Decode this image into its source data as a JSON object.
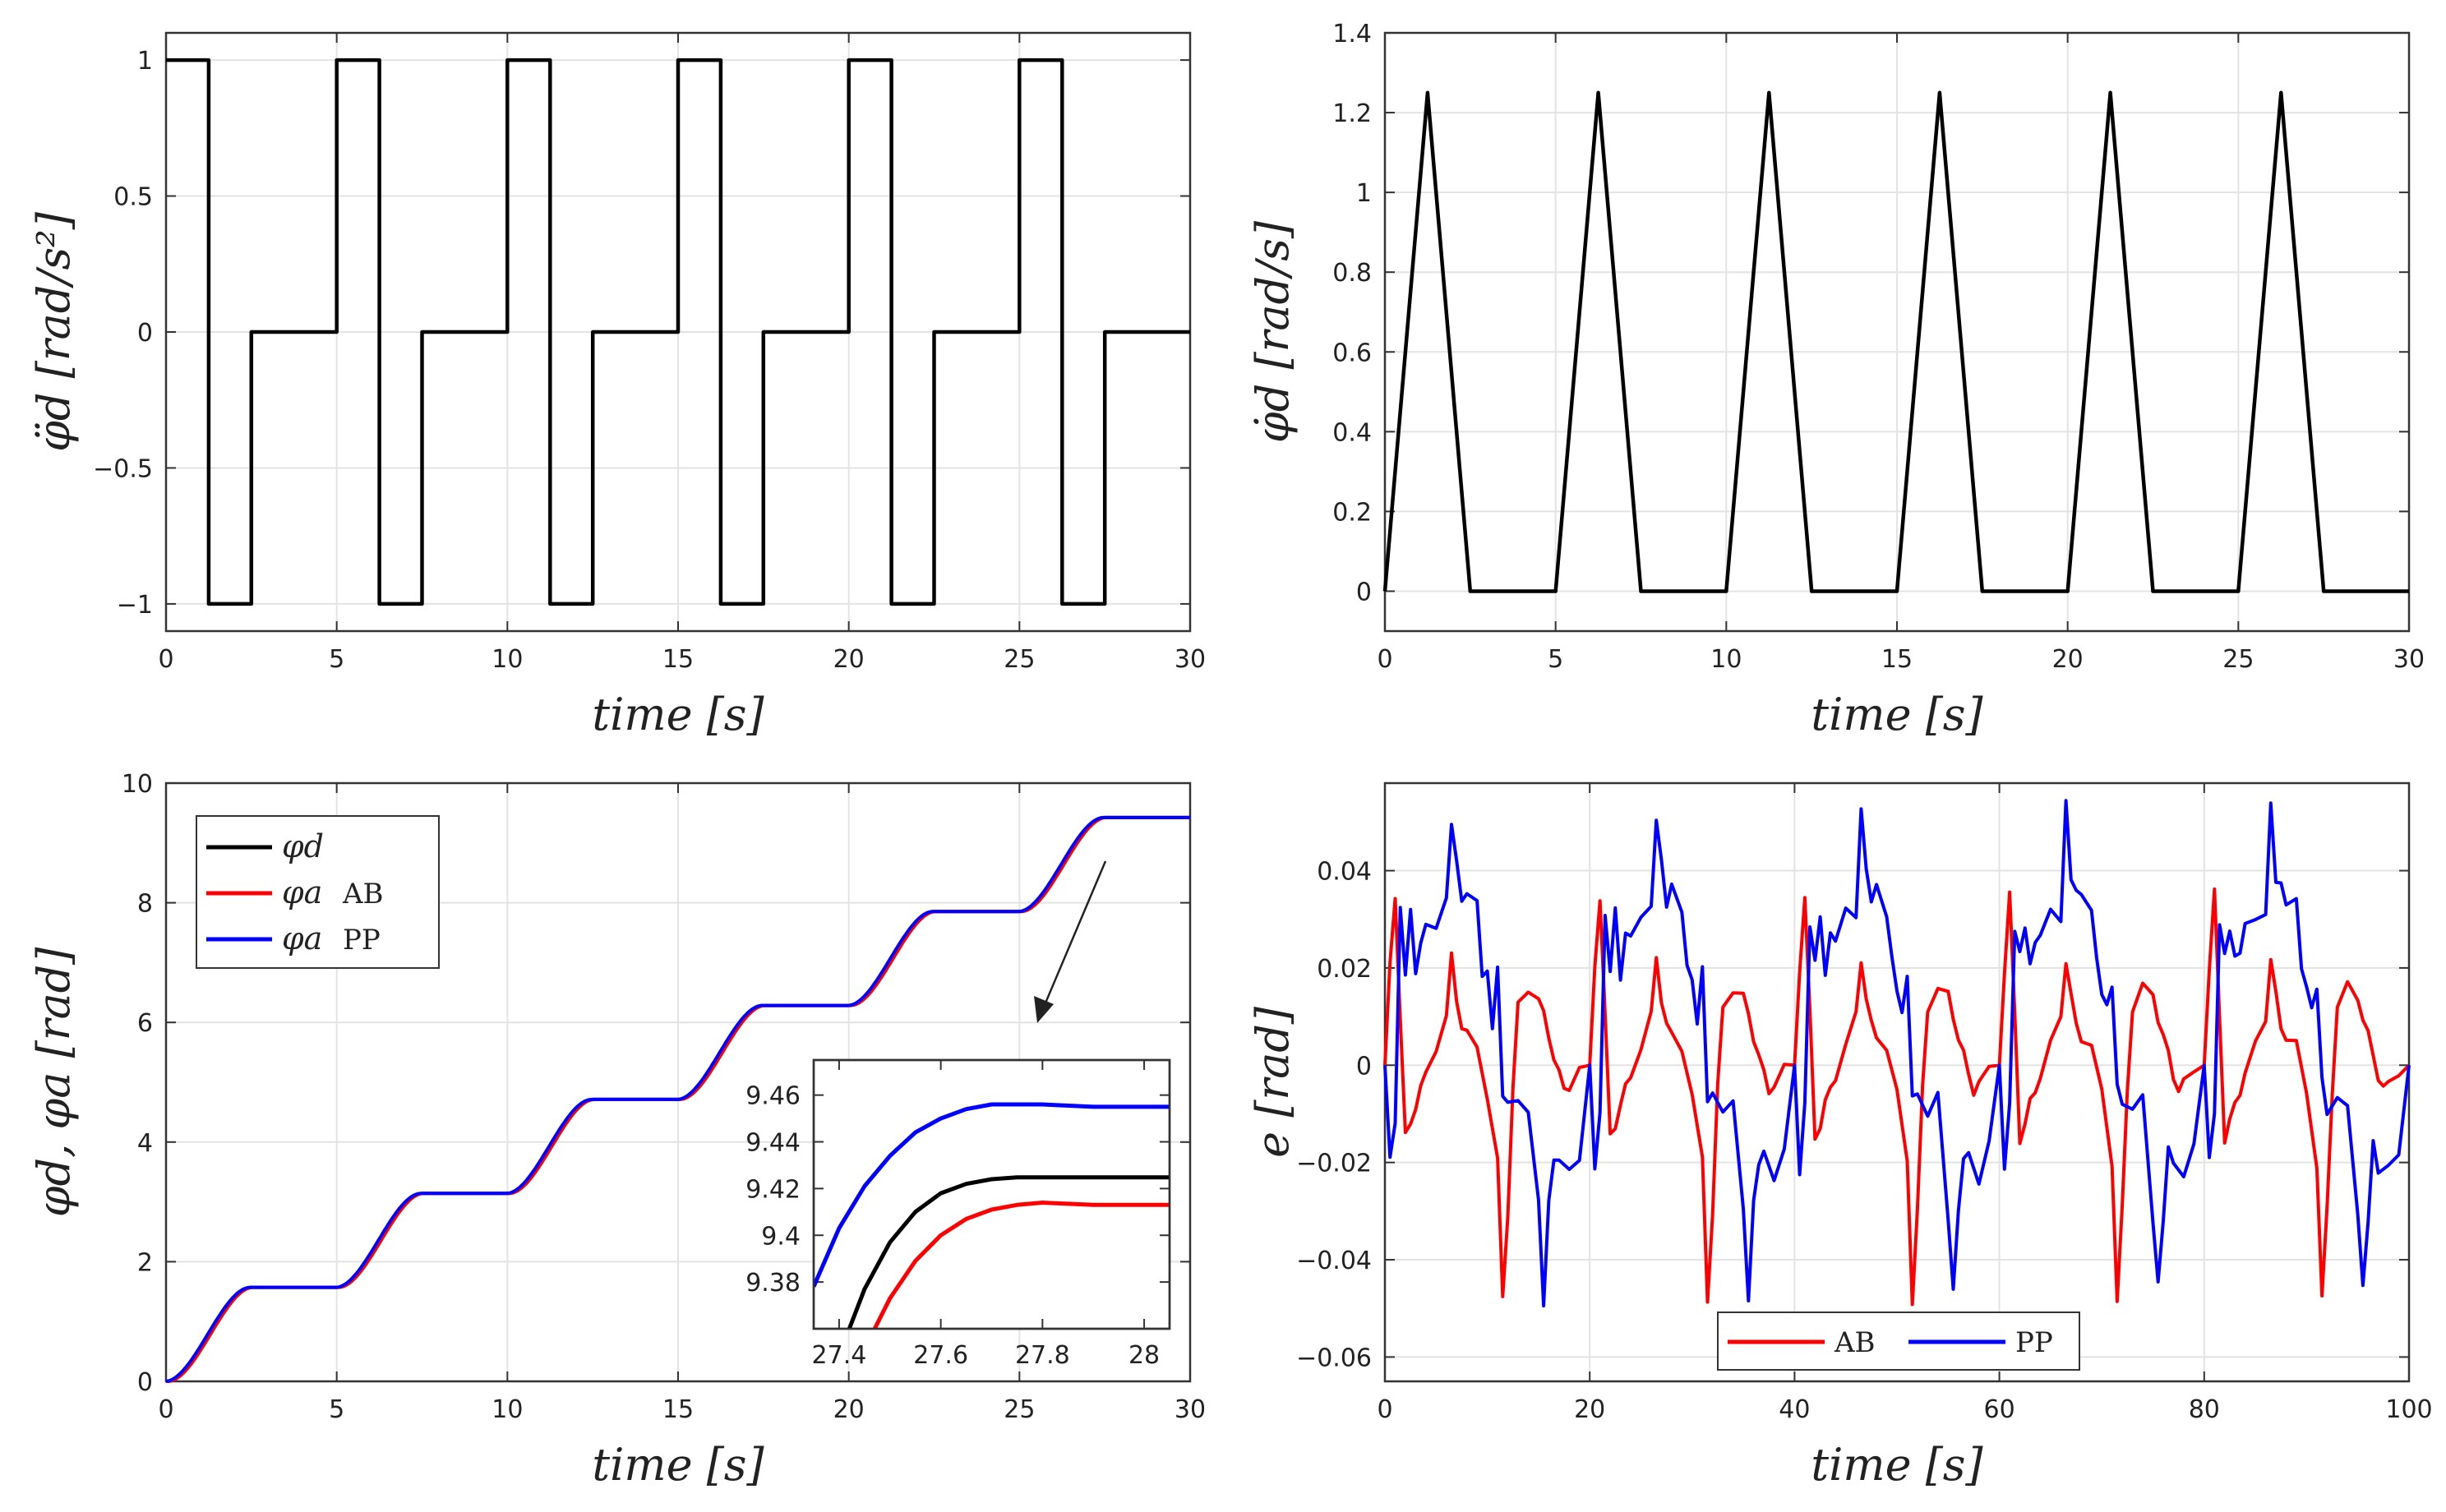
{
  "chart_data": [
    {
      "id": "acc",
      "type": "line",
      "ylabel": "φ̈d [rad/s²]",
      "xlabel": "time [s]",
      "xlim": [
        0,
        30
      ],
      "ylim": [
        -1.1,
        1.1
      ],
      "xticks": [
        0,
        5,
        10,
        15,
        20,
        25,
        30
      ],
      "xtick_labels": [
        "0",
        "5",
        "10",
        "15",
        "20",
        "25",
        "30"
      ],
      "yticks": [
        -1,
        -0.5,
        0,
        0.5,
        1
      ],
      "ytick_labels": [
        "−1",
        "−0.5",
        "0",
        "0.5",
        "1"
      ],
      "grid": true,
      "series": [
        {
          "name": "φ̈d",
          "color": "#000000",
          "x": [
            0,
            1.25,
            1.25,
            2.5,
            2.5,
            5,
            5,
            6.25,
            6.25,
            7.5,
            7.5,
            10,
            10,
            11.25,
            11.25,
            12.5,
            12.5,
            15,
            15,
            16.25,
            16.25,
            17.5,
            17.5,
            20,
            20,
            21.25,
            21.25,
            22.5,
            22.5,
            25,
            25,
            26.25,
            26.25,
            27.5,
            27.5,
            30
          ],
          "y": [
            1,
            1,
            -1,
            -1,
            0,
            0,
            1,
            1,
            -1,
            -1,
            0,
            0,
            1,
            1,
            -1,
            -1,
            0,
            0,
            1,
            1,
            -1,
            -1,
            0,
            0,
            1,
            1,
            -1,
            -1,
            0,
            0,
            1,
            1,
            -1,
            -1,
            0,
            0
          ]
        }
      ]
    },
    {
      "id": "vel",
      "type": "line",
      "ylabel": "φ̇d [rad/s]",
      "xlabel": "time [s]",
      "xlim": [
        0,
        30
      ],
      "ylim": [
        -0.1,
        1.4
      ],
      "xticks": [
        0,
        5,
        10,
        15,
        20,
        25,
        30
      ],
      "xtick_labels": [
        "0",
        "5",
        "10",
        "15",
        "20",
        "25",
        "30"
      ],
      "yticks": [
        0,
        0.2,
        0.4,
        0.6,
        0.8,
        1,
        1.2,
        1.4
      ],
      "ytick_labels": [
        "0",
        "0.2",
        "0.4",
        "0.6",
        "0.8",
        "1",
        "1.2",
        "1.4"
      ],
      "grid": true,
      "series": [
        {
          "name": "φ̇d",
          "color": "#000000",
          "x": [
            0,
            1.25,
            2.5,
            5,
            6.25,
            7.5,
            10,
            11.25,
            12.5,
            15,
            16.25,
            17.5,
            20,
            21.25,
            22.5,
            25,
            26.25,
            27.5,
            30
          ],
          "y": [
            0,
            1.25,
            0,
            0,
            1.25,
            0,
            0,
            1.25,
            0,
            0,
            1.25,
            0,
            0,
            1.25,
            0,
            0,
            1.25,
            0,
            0
          ]
        }
      ]
    },
    {
      "id": "pos",
      "type": "line",
      "ylabel": "φd, φa [rad]",
      "xlabel": "time [s]",
      "xlim": [
        0,
        30
      ],
      "ylim": [
        0,
        10
      ],
      "xticks": [
        0,
        5,
        10,
        15,
        20,
        25,
        30
      ],
      "xtick_labels": [
        "0",
        "5",
        "10",
        "15",
        "20",
        "25",
        "30"
      ],
      "yticks": [
        0,
        2,
        4,
        6,
        8,
        10
      ],
      "ytick_labels": [
        "0",
        "2",
        "4",
        "6",
        "8",
        "10"
      ],
      "grid": true,
      "legend": {
        "placement": "top-left",
        "entries": [
          {
            "symbol": "φd",
            "suffix": "",
            "color": "#000000"
          },
          {
            "symbol": "φa",
            "suffix": "AB",
            "color": "#ff0000"
          },
          {
            "symbol": "φa",
            "suffix": "PP",
            "color": "#0000ff"
          }
        ]
      },
      "series": [
        {
          "name": "φd",
          "color": "#000000",
          "step": 1.5708,
          "period": 5,
          "ramp": 2.5
        },
        {
          "name": "φa AB",
          "color": "#ff0000",
          "step": 1.5708,
          "period": 5,
          "ramp": 2.5,
          "lag": 0.05
        },
        {
          "name": "φa PP",
          "color": "#0000ff",
          "step": 1.5708,
          "period": 5,
          "ramp": 2.5,
          "lead": 0.03
        }
      ],
      "inset": {
        "xlim": [
          27.35,
          28.05
        ],
        "ylim": [
          9.36,
          9.475
        ],
        "xticks": [
          27.4,
          27.6,
          27.8,
          28
        ],
        "xtick_labels": [
          "27.4",
          "27.6",
          "27.8",
          "28"
        ],
        "yticks": [
          9.38,
          9.4,
          9.42,
          9.44,
          9.46
        ],
        "ytick_labels": [
          "9.38",
          "9.4",
          "9.42",
          "9.44",
          "9.46"
        ],
        "series": [
          {
            "name": "φa PP",
            "color": "#0000ff",
            "x": [
              27.35,
              27.4,
              27.45,
              27.5,
              27.55,
              27.6,
              27.65,
              27.7,
              27.75,
              27.8,
              27.9,
              28.0,
              28.05
            ],
            "y": [
              9.378,
              9.403,
              9.421,
              9.434,
              9.444,
              9.45,
              9.454,
              9.456,
              9.456,
              9.456,
              9.455,
              9.455,
              9.455
            ]
          },
          {
            "name": "φd",
            "color": "#000000",
            "x": [
              27.42,
              27.45,
              27.5,
              27.55,
              27.6,
              27.65,
              27.7,
              27.75,
              28.05
            ],
            "y": [
              9.36,
              9.377,
              9.397,
              9.41,
              9.418,
              9.422,
              9.424,
              9.4248,
              9.4248
            ]
          },
          {
            "name": "φa AB",
            "color": "#ff0000",
            "x": [
              27.47,
              27.5,
              27.55,
              27.6,
              27.65,
              27.7,
              27.75,
              27.8,
              27.9,
              28.0,
              28.05
            ],
            "y": [
              9.36,
              9.373,
              9.389,
              9.4,
              9.407,
              9.411,
              9.413,
              9.414,
              9.413,
              9.413,
              9.413
            ]
          }
        ]
      }
    },
    {
      "id": "err",
      "type": "line",
      "ylabel": "e [rad]",
      "xlabel": "time [s]",
      "xlim": [
        0,
        100
      ],
      "ylim": [
        -0.065,
        0.058
      ],
      "xticks": [
        0,
        20,
        40,
        60,
        80,
        100
      ],
      "xtick_labels": [
        "0",
        "20",
        "40",
        "60",
        "80",
        "100"
      ],
      "yticks": [
        -0.06,
        -0.04,
        -0.02,
        0,
        0.02,
        0.04
      ],
      "ytick_labels": [
        "−0.06",
        "−0.04",
        "−0.02",
        "0",
        "0.02",
        "0.04"
      ],
      "grid": true,
      "legend": {
        "placement": "bottom-center",
        "entries": [
          {
            "symbol": "",
            "suffix": "AB",
            "color": "#ff0000"
          },
          {
            "symbol": "",
            "suffix": "PP",
            "color": "#0000ff"
          }
        ]
      },
      "series": [
        {
          "name": "AB",
          "color": "#ff0000",
          "period": 20,
          "x": [
            0,
            0.5,
            1,
            1.5,
            2,
            2.5,
            3,
            3.5,
            4,
            5,
            6,
            6.5,
            7,
            7.5,
            8,
            9,
            10,
            11,
            11.5,
            12,
            12.5,
            13,
            14,
            15,
            15.5,
            16,
            16.5,
            17,
            17.5,
            18,
            19,
            20
          ],
          "y": [
            0,
            0.02,
            0.035,
            0.01,
            -0.015,
            -0.012,
            -0.008,
            -0.005,
            -0.002,
            0.004,
            0.01,
            0.022,
            0.014,
            0.008,
            0.006,
            0.004,
            -0.006,
            -0.02,
            -0.048,
            -0.03,
            -0.005,
            0.012,
            0.016,
            0.014,
            0.01,
            0.006,
            0.002,
            -0.002,
            -0.005,
            -0.004,
            -0.001,
            0
          ]
        },
        {
          "name": "PP",
          "color": "#0000ff",
          "period": 20,
          "x": [
            0,
            0.5,
            1,
            1.5,
            2,
            2.5,
            3,
            3.5,
            4,
            5,
            6,
            6.5,
            7,
            7.5,
            8,
            9,
            9.5,
            10,
            10.5,
            11,
            11.5,
            12,
            13,
            14,
            15,
            15.5,
            16,
            16.5,
            17,
            18,
            19,
            20
          ],
          "y": [
            0,
            -0.02,
            -0.01,
            0.03,
            0.021,
            0.03,
            0.02,
            0.025,
            0.028,
            0.03,
            0.032,
            0.052,
            0.04,
            0.035,
            0.035,
            0.033,
            0.02,
            0.017,
            0.01,
            0.018,
            -0.005,
            -0.008,
            -0.008,
            -0.008,
            -0.03,
            -0.047,
            -0.03,
            -0.018,
            -0.02,
            -0.022,
            -0.018,
            0
          ]
        }
      ]
    }
  ]
}
